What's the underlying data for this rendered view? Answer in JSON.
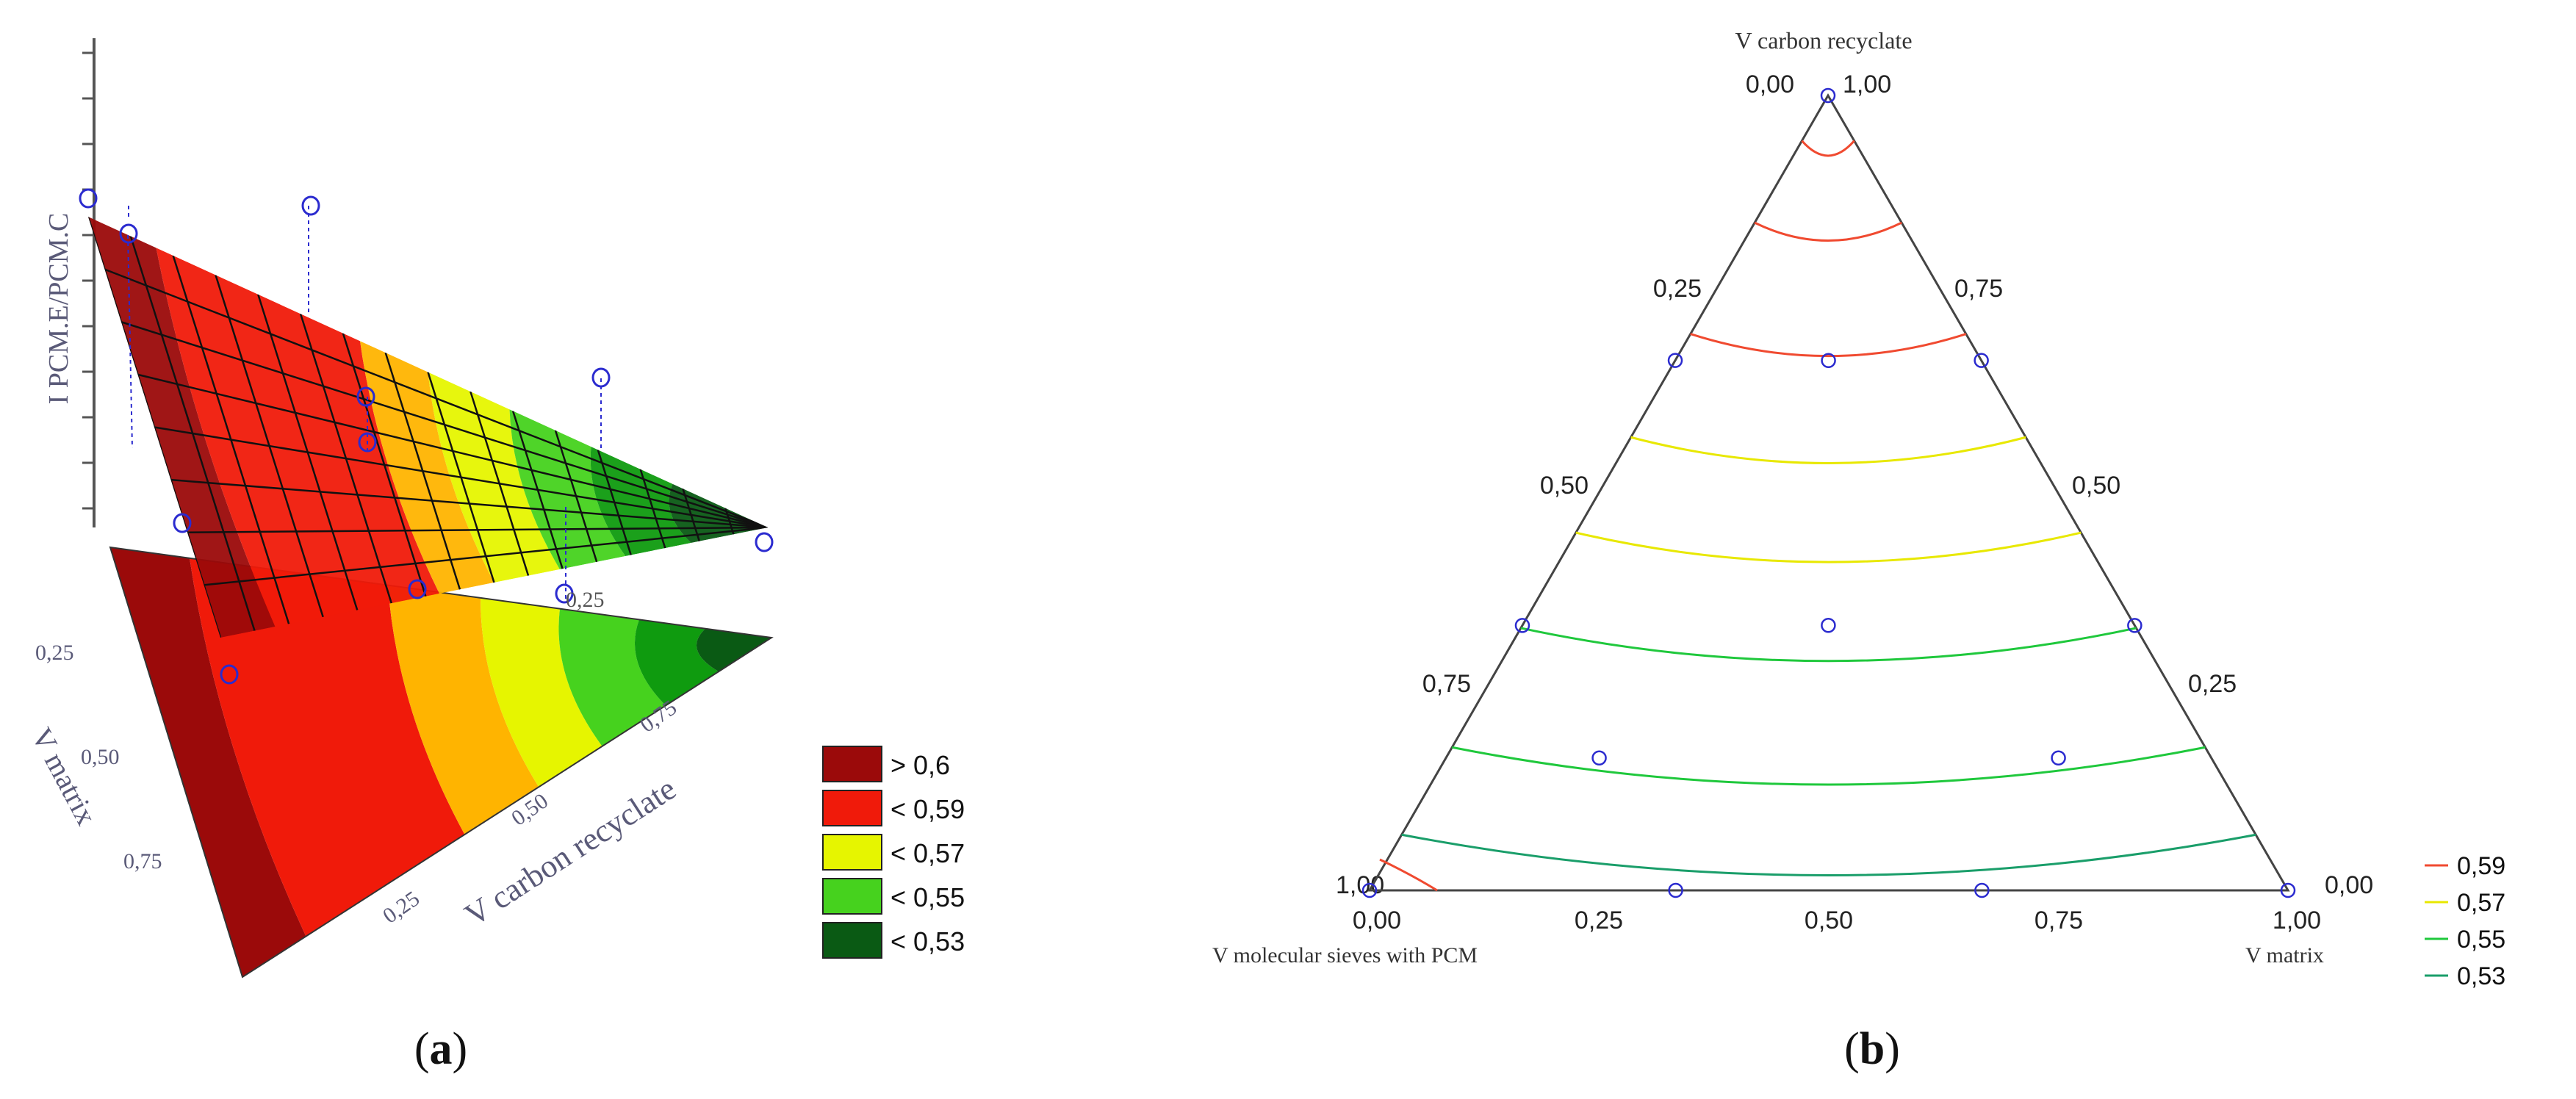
{
  "panels": [
    {
      "label": "(a)",
      "bold": "a"
    },
    {
      "label": "(b)",
      "bold": "b"
    }
  ],
  "colors": {
    "dark_red": "#9B0A0A",
    "red": "#F01A0A",
    "orange": "#FFB400",
    "yellow": "#E6F500",
    "light_green": "#46D21E",
    "green": "#0F9B0F",
    "dark_green": "#0A5A14",
    "marker": "#2B2BCF",
    "axis_text": "#5a5a78",
    "line": "#444444"
  },
  "chart_data": [
    {
      "type": "surface",
      "panel": "(a)",
      "zlabel": "I PCM.E/PCM.C",
      "axis_labels": {
        "matrix": "V matrix",
        "carbon": "V carbon recyclate"
      },
      "matrix_ticks": [
        "0,25",
        "0,50",
        "0,75"
      ],
      "carbon_ticks": [
        "0,25",
        "0,50",
        "0,75"
      ],
      "floor_tick": "0,25",
      "legend": [
        {
          "label": "> 0,6",
          "color": "#9B0A0A"
        },
        {
          "label": "< 0,59",
          "color": "#F01A0A"
        },
        {
          "label": "< 0,57",
          "color": "#E6F500"
        },
        {
          "label": "< 0,55",
          "color": "#46D21E"
        },
        {
          "label": "< 0,53",
          "color": "#0A5A14"
        }
      ]
    },
    {
      "type": "ternary-contour",
      "panel": "(b)",
      "vertex_labels": {
        "top": "V carbon recyclate",
        "bottom_left": "V molecular sieves with PCM",
        "bottom_right": "V matrix"
      },
      "corner_values": {
        "top_left": "0,00",
        "top_right": "1,00",
        "left": "1,00",
        "right": "0,00"
      },
      "left_edge_ticks": [
        "0,25",
        "0,50",
        "0,75"
      ],
      "right_edge_ticks": [
        "0,75",
        "0,50",
        "0,25"
      ],
      "bottom_ticks": [
        "0,00",
        "0,25",
        "0,50",
        "0,75",
        "1,00"
      ],
      "design_points": [
        [
          0,
          0,
          1
        ],
        [
          1,
          0,
          0
        ],
        [
          0,
          1,
          0
        ],
        [
          0.6667,
          0.3333,
          0
        ],
        [
          0.3333,
          0.6667,
          0
        ],
        [
          0.6667,
          0,
          0.3333
        ],
        [
          0.3333,
          0,
          0.6667
        ],
        [
          0,
          0.6667,
          0.3333
        ],
        [
          0,
          0.3333,
          0.6667
        ],
        [
          0.3333,
          0.3333,
          0.3333
        ],
        [
          0.6667,
          0.1667,
          0.1667
        ],
        [
          0.1667,
          0.6667,
          0.1667
        ],
        [
          0.1667,
          0.1667,
          0.6667
        ]
      ],
      "design_point_columns": [
        "V molecular sieves with PCM",
        "V matrix",
        "V carbon recyclate"
      ],
      "contour_levels": [
        {
          "level": "0,59",
          "color": "#F04A30",
          "t": [
            0.057,
            0.16,
            0.3
          ]
        },
        {
          "level": "0,57",
          "color": "#E8E800",
          "t": [
            0.43,
            0.55
          ]
        },
        {
          "level": "0,55",
          "color": "#1FC83C",
          "t": [
            0.67,
            0.82
          ]
        },
        {
          "level": "0,53",
          "color": "#1A9E6A",
          "t": [
            0.93
          ]
        }
      ]
    }
  ]
}
